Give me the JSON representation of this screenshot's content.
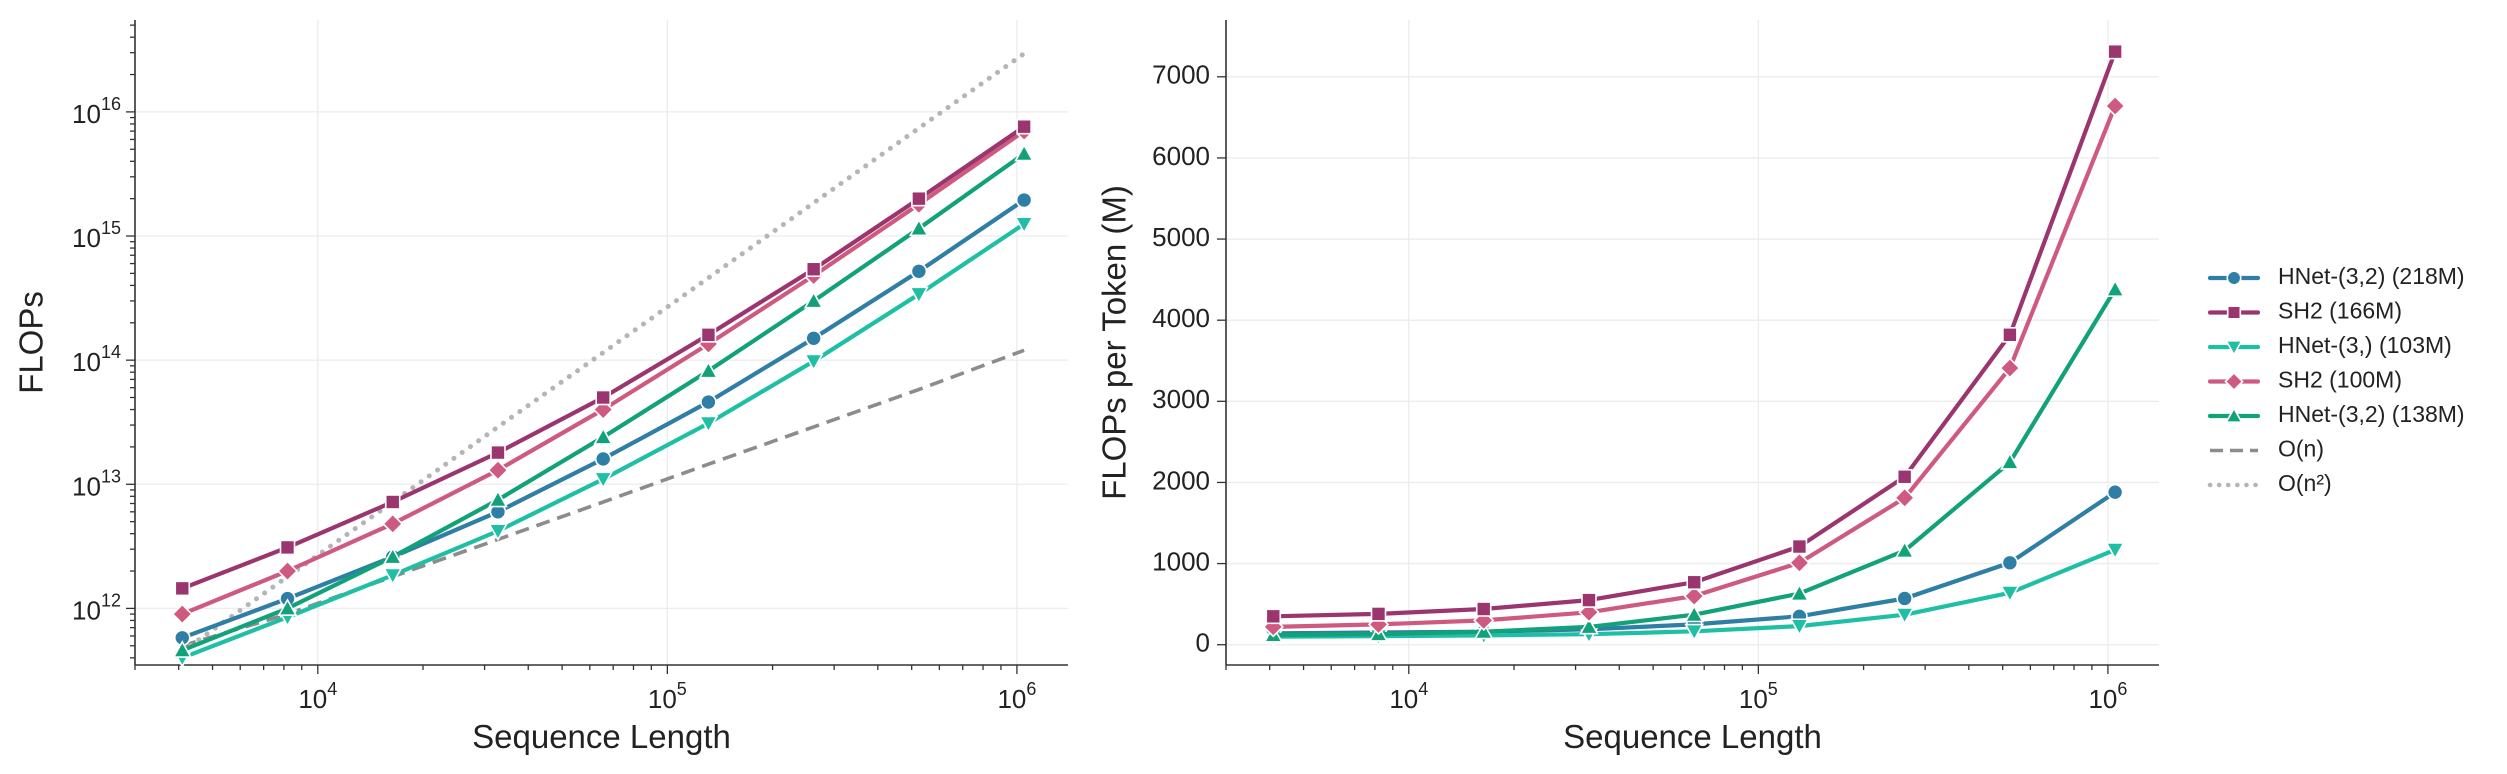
{
  "chart_data": [
    {
      "type": "line",
      "panel": "left",
      "xscale": "log",
      "yscale": "log",
      "xlabel": "Sequence Length",
      "ylabel": "FLOPs",
      "xlim": [
        3000,
        1400000
      ],
      "ylim": [
        350000000000.0,
        5.5e+16
      ],
      "grid": true,
      "x": [
        4096,
        8192,
        16384,
        32768,
        65536,
        131072,
        262144,
        524288,
        1048576
      ],
      "x_ticks": [
        {
          "value": 10000,
          "base": "10",
          "exp": "4"
        },
        {
          "value": 100000,
          "base": "10",
          "exp": "5"
        },
        {
          "value": 1000000,
          "base": "10",
          "exp": "6"
        }
      ],
      "y_ticks": [
        {
          "value": 1000000000000.0,
          "base": "10",
          "exp": "12"
        },
        {
          "value": 10000000000000.0,
          "base": "10",
          "exp": "13"
        },
        {
          "value": 100000000000000.0,
          "base": "10",
          "exp": "14"
        },
        {
          "value": 1000000000000000.0,
          "base": "10",
          "exp": "15"
        },
        {
          "value": 1e+16,
          "base": "10",
          "exp": "16"
        }
      ],
      "series": [
        {
          "name": "O(n)",
          "style": "dashed",
          "color": "#8c8c8c",
          "marker": "none",
          "values": [
            500000000000.0,
            900000000000.0,
            1800000000000.0,
            3600000000000.0,
            7200000000000.0,
            14500000000000.0,
            29000000000000.0,
            58000000000000.0,
            120000000000000.0
          ]
        },
        {
          "name": "O(n²)",
          "style": "dotted",
          "color": "#b5b5b5",
          "marker": "none",
          "values": [
            450000000000.0,
            1800000000000.0,
            7200000000000.0,
            29000000000000.0,
            115000000000000.0,
            460000000000000.0,
            1850000000000000.0,
            7400000000000000.0,
            2.95e+16
          ]
        },
        {
          "name": "HNet-(3,2) (218M)",
          "style": "solid",
          "color": "#2e7ea6",
          "marker": "circle",
          "values": [
            580000000000.0,
            1200000000000.0,
            2600000000000.0,
            6000000000000.0,
            16000000000000.0,
            46000000000000.0,
            150000000000000.0,
            520000000000000.0,
            1950000000000000.0
          ]
        },
        {
          "name": "HNet-(3,) (103M)",
          "style": "solid",
          "color": "#1fbfa5",
          "marker": "triangle-down",
          "values": [
            400000000000.0,
            850000000000.0,
            1850000000000.0,
            4200000000000.0,
            11000000000000.0,
            31000000000000.0,
            98000000000000.0,
            340000000000000.0,
            1250000000000000.0
          ]
        },
        {
          "name": "HNet-(3,2) (138M)",
          "style": "solid",
          "color": "#12a27a",
          "marker": "triangle-up",
          "values": [
            460000000000.0,
            1000000000000.0,
            2600000000000.0,
            7500000000000.0,
            24000000000000.0,
            82000000000000.0,
            300000000000000.0,
            1150000000000000.0,
            4600000000000000.0
          ]
        },
        {
          "name": "SH2 (100M)",
          "style": "solid",
          "color": "#cf5a80",
          "marker": "diamond",
          "values": [
            900000000000.0,
            2000000000000.0,
            4800000000000.0,
            13000000000000.0,
            40000000000000.0,
            135000000000000.0,
            480000000000000.0,
            1800000000000000.0,
            7000000000000000.0
          ]
        },
        {
          "name": "SH2 (166M)",
          "style": "solid",
          "color": "#9b3570",
          "marker": "square",
          "values": [
            1450000000000.0,
            3100000000000.0,
            7200000000000.0,
            18000000000000.0,
            50000000000000.0,
            160000000000000.0,
            540000000000000.0,
            2000000000000000.0,
            7600000000000000.0
          ]
        }
      ]
    },
    {
      "type": "line",
      "panel": "right",
      "xscale": "log",
      "yscale": "linear",
      "xlabel": "Sequence Length",
      "ylabel": "FLOPs per Token (M)",
      "xlim": [
        3000,
        1400000
      ],
      "ylim": [
        -250,
        7700
      ],
      "grid": true,
      "x": [
        4096,
        8192,
        16384,
        32768,
        65536,
        131072,
        262144,
        524288,
        1048576
      ],
      "x_ticks": [
        {
          "value": 10000,
          "base": "10",
          "exp": "4"
        },
        {
          "value": 100000,
          "base": "10",
          "exp": "5"
        },
        {
          "value": 1000000,
          "base": "10",
          "exp": "6"
        }
      ],
      "y_ticks": [
        {
          "value": 0,
          "label": "0"
        },
        {
          "value": 1000,
          "label": "1000"
        },
        {
          "value": 2000,
          "label": "2000"
        },
        {
          "value": 3000,
          "label": "3000"
        },
        {
          "value": 4000,
          "label": "4000"
        },
        {
          "value": 5000,
          "label": "5000"
        },
        {
          "value": 6000,
          "label": "6000"
        },
        {
          "value": 7000,
          "label": "7000"
        }
      ],
      "series": [
        {
          "name": "HNet-(3,2) (218M)",
          "style": "solid",
          "color": "#2e7ea6",
          "marker": "circle",
          "values": [
            140,
            150,
            160,
            190,
            250,
            350,
            570,
            1010,
            1880
          ]
        },
        {
          "name": "HNet-(3,) (103M)",
          "style": "solid",
          "color": "#1fbfa5",
          "marker": "triangle-down",
          "values": [
            100,
            105,
            115,
            130,
            165,
            230,
            370,
            640,
            1170
          ]
        },
        {
          "name": "HNet-(3,2) (138M)",
          "style": "solid",
          "color": "#12a27a",
          "marker": "triangle-up",
          "values": [
            120,
            130,
            160,
            220,
            370,
            630,
            1160,
            2250,
            4380
          ]
        },
        {
          "name": "SH2 (100M)",
          "style": "solid",
          "color": "#cf5a80",
          "marker": "diamond",
          "values": [
            220,
            250,
            300,
            400,
            600,
            1010,
            1810,
            3410,
            6640
          ]
        },
        {
          "name": "SH2 (166M)",
          "style": "solid",
          "color": "#9b3570",
          "marker": "square",
          "values": [
            350,
            380,
            440,
            550,
            770,
            1210,
            2070,
            3820,
            7310
          ]
        }
      ]
    }
  ],
  "legend": {
    "position": "right",
    "items": [
      {
        "label": "HNet-(3,2) (218M)",
        "color": "#2e7ea6",
        "style": "solid",
        "marker": "circle"
      },
      {
        "label": "SH2 (166M)",
        "color": "#9b3570",
        "style": "solid",
        "marker": "square"
      },
      {
        "label": "HNet-(3,) (103M)",
        "color": "#1fbfa5",
        "style": "solid",
        "marker": "triangle-down"
      },
      {
        "label": "SH2 (100M)",
        "color": "#cf5a80",
        "style": "solid",
        "marker": "diamond"
      },
      {
        "label": "HNet-(3,2) (138M)",
        "color": "#12a27a",
        "style": "solid",
        "marker": "triangle-up"
      },
      {
        "label": "O(n)",
        "color": "#8c8c8c",
        "style": "dashed",
        "marker": "none"
      },
      {
        "label": "O(n²)",
        "color": "#b5b5b5",
        "style": "dotted",
        "marker": "none"
      }
    ]
  }
}
